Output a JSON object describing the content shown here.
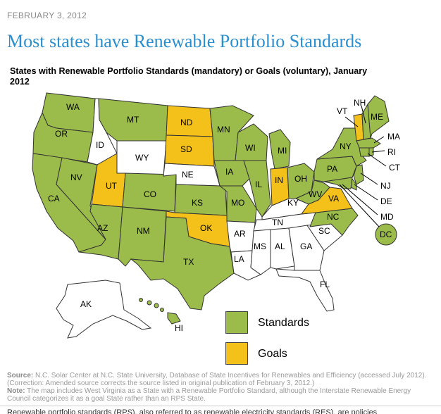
{
  "date": "FEBRUARY 3, 2012",
  "headline": "Most states have Renewable Portfolio Standards",
  "map_title": "States with Renewable Portfolio Standards (mandatory) or Goals (voluntary), January 2012",
  "colors": {
    "standards": "#9bbb4a",
    "goals": "#f4c11a",
    "none": "#ffffff",
    "border": "#333333"
  },
  "legend": {
    "standards": "Standards",
    "goals": "Goals"
  },
  "categories": {
    "standards": [
      "WA",
      "OR",
      "CA",
      "NV",
      "AZ",
      "NM",
      "CO",
      "MT",
      "MN",
      "IA",
      "KS",
      "MO",
      "TX",
      "WI",
      "IL",
      "MI",
      "OH",
      "PA",
      "NY",
      "ME",
      "NH",
      "MA",
      "RI",
      "CT",
      "NJ",
      "DE",
      "MD",
      "DC",
      "WV",
      "NC",
      "HI"
    ],
    "goals": [
      "ND",
      "SD",
      "UT",
      "OK",
      "IN",
      "VA",
      "VT"
    ],
    "none": [
      "ID",
      "WY",
      "NE",
      "AR",
      "LA",
      "MS",
      "AL",
      "GA",
      "SC",
      "TN",
      "KY",
      "FL",
      "AK"
    ]
  },
  "labels": {
    "WA": "WA",
    "OR": "OR",
    "CA": "CA",
    "NV": "NV",
    "ID": "ID",
    "MT": "MT",
    "WY": "WY",
    "UT": "UT",
    "CO": "CO",
    "AZ": "AZ",
    "NM": "NM",
    "ND": "ND",
    "SD": "SD",
    "NE": "NE",
    "KS": "KS",
    "OK": "OK",
    "TX": "TX",
    "MN": "MN",
    "IA": "IA",
    "MO": "MO",
    "AR": "AR",
    "LA": "LA",
    "WI": "WI",
    "IL": "IL",
    "MI": "MI",
    "IN": "IN",
    "OH": "OH",
    "KY": "KY",
    "TN": "TN",
    "MS": "MS",
    "AL": "AL",
    "GA": "GA",
    "FL": "FL",
    "SC": "SC",
    "NC": "NC",
    "VA": "VA",
    "WV": "WV",
    "PA": "PA",
    "NY": "NY",
    "VT": "VT",
    "NH": "NH",
    "ME": "ME",
    "MA": "MA",
    "RI": "RI",
    "CT": "CT",
    "NJ": "NJ",
    "DE": "DE",
    "MD": "MD",
    "DC": "DC",
    "AK": "AK",
    "HI": "HI"
  },
  "footer": {
    "source_label": "Source:",
    "source_text": "N.C. Solar Center at N.C. State University, Database of State Incentives for Renewables and Efficiency (accessed July 2012). (Correction: Amended source corrects the source listed in original publication of February 3, 2012.)",
    "note_label": "Note:",
    "note_text": "The map includes West Virginia as a State with a Renewable Portfolio Standard, although the Interstate Renewable Energy Council categorizes it as a goal State rather than an RPS State."
  },
  "cut_text": "Renewable portfolio standards (RPS), also referred to as renewable electricity standards (RES), are policies"
}
